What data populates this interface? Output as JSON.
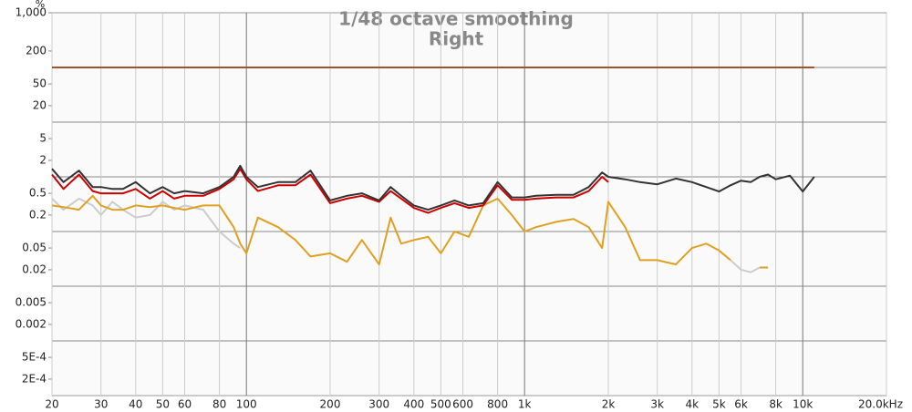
{
  "chart_data": {
    "type": "line",
    "title": "1/48 octave smoothing",
    "subtitle": "Right",
    "y_unit": "%",
    "log_x": true,
    "log_y": true,
    "x": [
      20,
      22,
      25,
      28,
      30,
      33,
      36,
      40,
      45,
      50,
      55,
      60,
      70,
      80,
      90,
      95,
      100,
      110,
      130,
      150,
      170,
      200,
      230,
      260,
      300,
      330,
      360,
      400,
      450,
      500,
      560,
      630,
      710,
      800,
      900,
      1000,
      1100,
      1300,
      1500,
      1700,
      1900,
      2000,
      2300,
      2600,
      3000,
      3500,
      4000,
      4500,
      5000,
      5500,
      6000,
      6500,
      7000,
      7500,
      8000,
      9000,
      10000,
      11000
    ],
    "xlim": [
      20,
      20000
    ],
    "ylim": [
      0.0001,
      1000
    ],
    "xticks": [
      20,
      30,
      40,
      50,
      60,
      80,
      100,
      200,
      300,
      400,
      500,
      600,
      800,
      {
        "value": 1000,
        "label": "1k"
      },
      {
        "value": 2000,
        "label": "2k"
      },
      {
        "value": 3000,
        "label": "3k"
      },
      {
        "value": 4000,
        "label": "4k"
      },
      {
        "value": 5000,
        "label": "5k"
      },
      {
        "value": 6000,
        "label": "6k"
      },
      {
        "value": 8000,
        "label": "8k"
      },
      {
        "value": 10000,
        "label": "10k"
      },
      {
        "value": 20000,
        "label": "20.0kHz"
      }
    ],
    "yticks": [
      {
        "value": 1000,
        "label": "1,000"
      },
      200,
      50,
      20,
      5,
      2,
      0.5,
      0.2,
      0.05,
      0.02,
      0.005,
      0.002,
      {
        "value": 0.0005,
        "label": "5E-4"
      },
      {
        "value": 0.0002,
        "label": "2E-4"
      }
    ],
    "ygrid": [
      100,
      10,
      1,
      0.1,
      0.01,
      0.001
    ],
    "series": [
      {
        "color": "#a0522d",
        "values": [
          100,
          100,
          100,
          100,
          100,
          100,
          100,
          100,
          100,
          100,
          100,
          100,
          100,
          100,
          100,
          100,
          100,
          100,
          100,
          100,
          100,
          100,
          100,
          100,
          100,
          100,
          100,
          100,
          100,
          100,
          100,
          100,
          100,
          100,
          100,
          100,
          100,
          100,
          100,
          100,
          100,
          100,
          100,
          100,
          100,
          100,
          100,
          100,
          100,
          100,
          100,
          100,
          100,
          100,
          100,
          100,
          100,
          100
        ]
      },
      {
        "color": "#cccccc",
        "values": [
          0.4,
          0.25,
          0.4,
          0.3,
          0.2,
          0.35,
          0.25,
          0.18,
          0.2,
          0.35,
          0.25,
          0.3,
          0.25,
          0.1,
          0.06,
          0.05,
          null,
          null,
          null,
          null,
          null,
          null,
          null,
          null,
          null,
          null,
          null,
          null,
          null,
          null,
          null,
          null,
          null,
          null,
          null,
          null,
          null,
          null,
          null,
          null,
          null,
          null,
          null,
          null,
          null,
          null,
          null,
          null,
          null,
          0.03,
          0.02,
          0.018,
          0.022,
          null,
          null,
          null,
          null,
          null
        ]
      },
      {
        "color": "#e0a020",
        "values": [
          0.3,
          0.28,
          0.25,
          0.45,
          0.3,
          0.25,
          0.25,
          0.3,
          0.28,
          0.3,
          0.27,
          0.25,
          0.3,
          0.3,
          0.12,
          0.06,
          0.04,
          0.18,
          0.12,
          0.07,
          0.035,
          0.04,
          0.028,
          0.07,
          0.025,
          0.18,
          0.06,
          0.07,
          0.08,
          0.04,
          0.1,
          0.08,
          0.3,
          0.4,
          0.2,
          0.1,
          0.12,
          0.15,
          0.17,
          0.12,
          0.05,
          0.35,
          0.12,
          0.03,
          0.03,
          0.025,
          0.05,
          0.06,
          0.045,
          0.03,
          null,
          null,
          0.022,
          0.022,
          null,
          null,
          null,
          null
        ]
      },
      {
        "color": "#cc0000",
        "values": [
          1.1,
          0.6,
          1.1,
          0.55,
          0.5,
          0.5,
          0.5,
          0.6,
          0.4,
          0.55,
          0.4,
          0.45,
          0.45,
          0.6,
          0.9,
          1.4,
          0.9,
          0.55,
          0.7,
          0.7,
          1.1,
          0.33,
          0.4,
          0.45,
          0.35,
          0.55,
          0.4,
          0.27,
          0.22,
          0.27,
          0.33,
          0.27,
          0.3,
          0.7,
          0.38,
          0.38,
          0.4,
          0.42,
          0.42,
          0.55,
          1.0,
          0.8,
          null,
          null,
          null,
          null,
          null,
          null,
          null,
          null,
          null,
          null,
          null,
          null,
          null,
          null,
          null,
          null
        ]
      },
      {
        "color": "#333333",
        "values": [
          1.4,
          0.8,
          1.3,
          0.65,
          0.65,
          0.6,
          0.6,
          0.8,
          0.5,
          0.65,
          0.5,
          0.55,
          0.5,
          0.65,
          1.0,
          1.6,
          1.0,
          0.65,
          0.8,
          0.8,
          1.3,
          0.37,
          0.45,
          0.5,
          0.37,
          0.65,
          0.45,
          0.3,
          0.25,
          0.3,
          0.37,
          0.3,
          0.33,
          0.8,
          0.42,
          0.42,
          0.45,
          0.47,
          0.47,
          0.65,
          1.2,
          1.0,
          0.9,
          0.8,
          0.73,
          0.93,
          0.8,
          0.65,
          0.54,
          0.7,
          0.85,
          0.8,
          1.0,
          1.1,
          0.9,
          1.05,
          0.54,
          1.0
        ]
      }
    ]
  }
}
